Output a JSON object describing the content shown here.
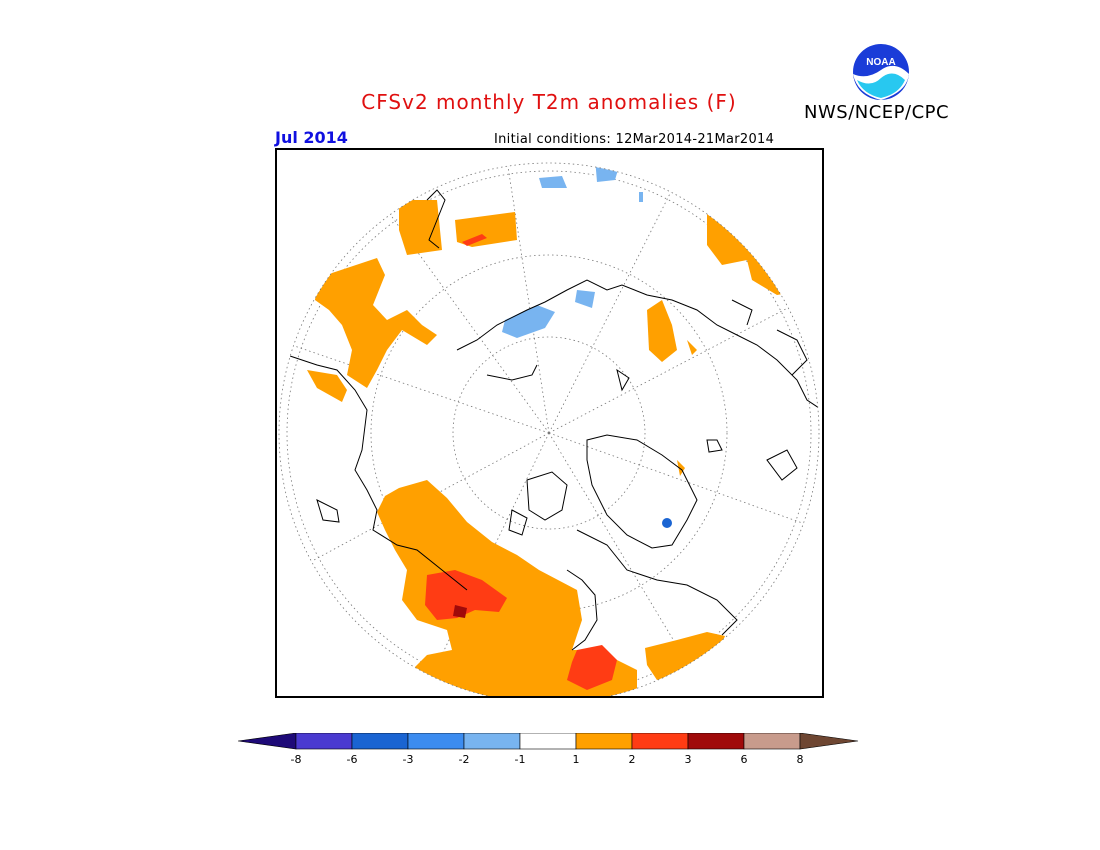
{
  "header": {
    "title": "CFSv2 monthly T2m anomalies (F)",
    "agency": "NWS/NCEP/CPC",
    "logo_text": "NOAA",
    "month": "Jul 2014",
    "initial_conditions": "Initial conditions: 12Mar2014-21Mar2014"
  },
  "legend": {
    "labels": [
      "-8",
      "-6",
      "-3",
      "-2",
      "-1",
      "1",
      "2",
      "3",
      "6",
      "8"
    ],
    "colors": [
      "#1e0a78",
      "#4a3ad0",
      "#1a64d2",
      "#3c8cf0",
      "#78b4f0",
      "#ffffff",
      "#ffa000",
      "#ff3c14",
      "#a00a0a",
      "#c89b8c",
      "#6e4632"
    ]
  },
  "map": {
    "projection": "north-polar-stereographic",
    "colors": {
      "warm1": "#ffa000",
      "warm2": "#ff3c14",
      "warm3": "#a00a0a",
      "cool1": "#78b4f0",
      "cool2": "#3c8cf0",
      "cool3": "#1a64d2"
    }
  }
}
